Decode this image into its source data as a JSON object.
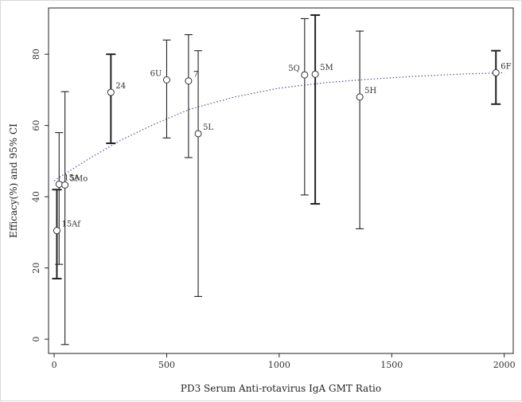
{
  "chart_data": {
    "type": "scatter",
    "title": "",
    "xlabel": "PD3 Serum Anti-rotavirus IgA GMT Ratio",
    "ylabel": "Efficacy(%) and 95% CI",
    "xlim": [
      -25,
      2040
    ],
    "ylim": [
      -4,
      93
    ],
    "xticks": [
      0,
      500,
      1000,
      1500,
      2000
    ],
    "yticks": [
      0,
      20,
      40,
      60,
      80
    ],
    "grid": false,
    "legend": "none",
    "colors": {
      "axis": "#222222",
      "marker_edge": "#333333",
      "marker_fill": "#ffffff",
      "error_bar": "#222222",
      "fit_line": "#4a55a2"
    },
    "points": [
      {
        "label": "15Af",
        "x": 12,
        "y": 30.5,
        "lo": 17,
        "hi": 42,
        "bold": true
      },
      {
        "label": "15A",
        "x": 22,
        "y": 43.5,
        "lo": 21,
        "hi": 58,
        "bold": false
      },
      {
        "label": "5Mo",
        "x": 48,
        "y": 43.3,
        "lo": -1.5,
        "hi": 69.5,
        "bold": false
      },
      {
        "label": "24",
        "x": 252,
        "y": 69.3,
        "lo": 55,
        "hi": 80,
        "bold": true
      },
      {
        "label": "6U",
        "x": 500,
        "y": 72.8,
        "lo": 56.5,
        "hi": 84,
        "bold": false
      },
      {
        "label": "7",
        "x": 597,
        "y": 72.5,
        "lo": 51,
        "hi": 85.5,
        "bold": false
      },
      {
        "label": "5L",
        "x": 640,
        "y": 57.7,
        "lo": 12,
        "hi": 81,
        "bold": false
      },
      {
        "label": "5Q",
        "x": 1113,
        "y": 74.2,
        "lo": 40.5,
        "hi": 90,
        "bold": false
      },
      {
        "label": "5M",
        "x": 1160,
        "y": 74.4,
        "lo": 38,
        "hi": 91,
        "bold": true
      },
      {
        "label": "5H",
        "x": 1358,
        "y": 68,
        "lo": 31,
        "hi": 86.5,
        "bold": false
      },
      {
        "label": "6F",
        "x": 1963,
        "y": 74.8,
        "lo": 66,
        "hi": 81,
        "bold": true
      }
    ],
    "fit_curve": {
      "name": "",
      "x": [
        0,
        50,
        150,
        300,
        450,
        600,
        800,
        1000,
        1200,
        1400,
        1600,
        1800,
        2000
      ],
      "y": [
        44.5,
        46.5,
        50.5,
        56,
        60.5,
        64.5,
        68,
        70.5,
        72,
        73,
        73.8,
        74.4,
        74.8
      ]
    },
    "point_label_offsets": {
      "15Af": "right",
      "15A": "right",
      "5Mo": "right",
      "24": "right",
      "6U": "left",
      "7": "right",
      "5L": "right",
      "5Q": "left",
      "5M": "right",
      "5H": "right",
      "6F": "right"
    }
  }
}
